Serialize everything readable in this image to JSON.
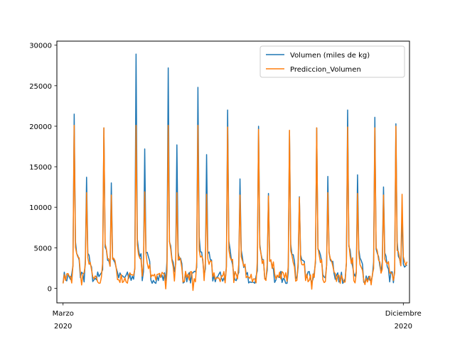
{
  "chart_data": {
    "type": "line",
    "title": "",
    "xlabel": "",
    "ylabel": "",
    "xlim": [
      "2020-02-25",
      "2020-12-06"
    ],
    "ylim": [
      -1800,
      30500
    ],
    "x_ticks": [
      {
        "date": "2020-03-01",
        "label_line1": "Marzo",
        "label_line2": "2020"
      },
      {
        "date": "2020-12-01",
        "label_line1": "Diciembre",
        "label_line2": "2020"
      }
    ],
    "y_ticks": [
      0,
      5000,
      10000,
      15000,
      20000,
      25000,
      30000
    ],
    "y_tick_labels": [
      "0",
      "5000",
      "10000",
      "15000",
      "20000",
      "25000",
      "30000"
    ],
    "grid": false,
    "legend_position": "top-right",
    "x_start": "2020-03-01",
    "x_end": "2020-12-04",
    "series": [
      {
        "name": "Volumen (miles de kg)",
        "color": "#1f77b4",
        "peaks": [
          {
            "date": "2020-03-10",
            "value": 21500
          },
          {
            "date": "2020-03-20",
            "value": 13700
          },
          {
            "date": "2020-04-03",
            "value": 19800
          },
          {
            "date": "2020-04-09",
            "value": 13000
          },
          {
            "date": "2020-04-29",
            "value": 28900
          },
          {
            "date": "2020-05-06",
            "value": 17200
          },
          {
            "date": "2020-05-25",
            "value": 27200
          },
          {
            "date": "2020-06-01",
            "value": 17700
          },
          {
            "date": "2020-06-18",
            "value": 24800
          },
          {
            "date": "2020-06-25",
            "value": 16500
          },
          {
            "date": "2020-07-12",
            "value": 22000
          },
          {
            "date": "2020-07-22",
            "value": 13500
          },
          {
            "date": "2020-08-06",
            "value": 20000
          },
          {
            "date": "2020-08-14",
            "value": 11700
          },
          {
            "date": "2020-08-31",
            "value": 19400
          },
          {
            "date": "2020-09-08",
            "value": 11300
          },
          {
            "date": "2020-09-22",
            "value": 19800
          },
          {
            "date": "2020-10-01",
            "value": 13800
          },
          {
            "date": "2020-10-17",
            "value": 22000
          },
          {
            "date": "2020-10-25",
            "value": 14000
          },
          {
            "date": "2020-11-08",
            "value": 21100
          },
          {
            "date": "2020-11-15",
            "value": 12500
          },
          {
            "date": "2020-11-25",
            "value": 20300
          },
          {
            "date": "2020-11-30",
            "value": 9200
          }
        ]
      },
      {
        "name": "Prediccion_Volumen",
        "color": "#ff7f0e",
        "peaks": [
          {
            "date": "2020-03-10",
            "value": 20100
          },
          {
            "date": "2020-03-20",
            "value": 11800
          },
          {
            "date": "2020-04-03",
            "value": 19800
          },
          {
            "date": "2020-04-09",
            "value": 11500
          },
          {
            "date": "2020-04-29",
            "value": 20100
          },
          {
            "date": "2020-05-06",
            "value": 11900
          },
          {
            "date": "2020-05-25",
            "value": 20100
          },
          {
            "date": "2020-06-01",
            "value": 11800
          },
          {
            "date": "2020-06-18",
            "value": 20100
          },
          {
            "date": "2020-06-25",
            "value": 11600
          },
          {
            "date": "2020-07-12",
            "value": 19900
          },
          {
            "date": "2020-07-22",
            "value": 11500
          },
          {
            "date": "2020-08-06",
            "value": 19600
          },
          {
            "date": "2020-08-14",
            "value": 11400
          },
          {
            "date": "2020-08-31",
            "value": 19500
          },
          {
            "date": "2020-09-08",
            "value": 11200
          },
          {
            "date": "2020-09-22",
            "value": 19800
          },
          {
            "date": "2020-10-01",
            "value": 11800
          },
          {
            "date": "2020-10-17",
            "value": 19900
          },
          {
            "date": "2020-10-25",
            "value": 11700
          },
          {
            "date": "2020-11-08",
            "value": 19800
          },
          {
            "date": "2020-11-15",
            "value": 11500
          },
          {
            "date": "2020-11-25",
            "value": 20000
          },
          {
            "date": "2020-11-30",
            "value": 11600
          }
        ]
      }
    ]
  }
}
